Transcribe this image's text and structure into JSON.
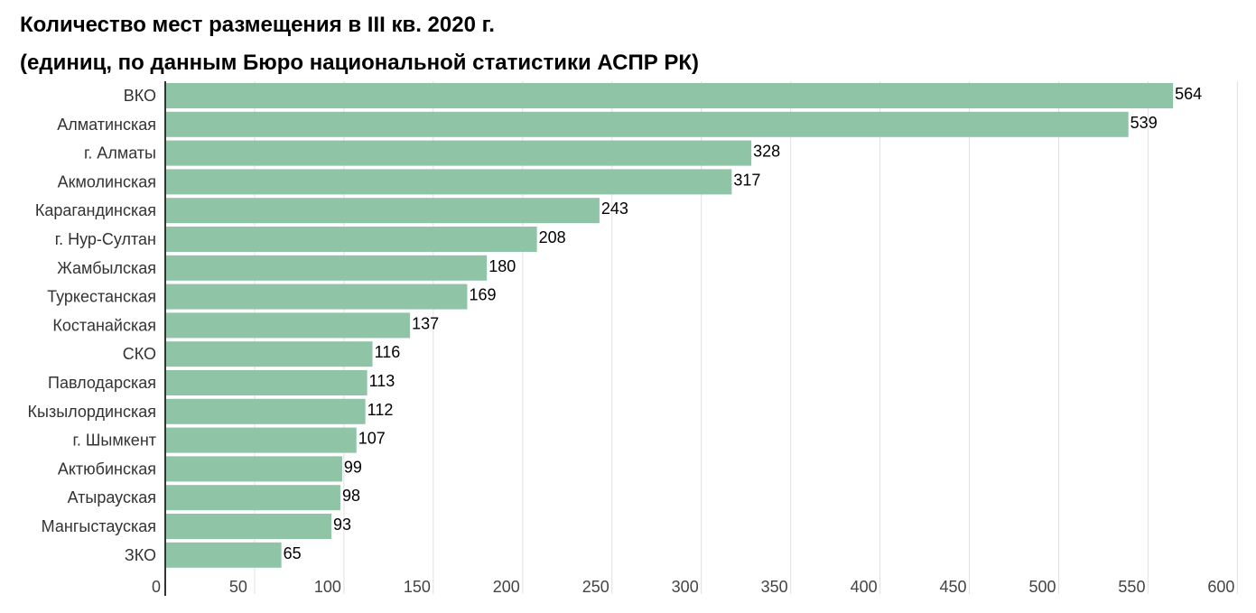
{
  "chart_data": {
    "type": "bar",
    "orientation": "horizontal",
    "title": "Количество мест размещения в III кв. 2020 г.",
    "subtitle": "(единиц, по данным Бюро национальной статистики АСПР РК)",
    "xlabel": "",
    "ylabel": "",
    "xlim": [
      0,
      600
    ],
    "x_ticks": [
      0,
      50,
      100,
      150,
      200,
      250,
      300,
      350,
      400,
      450,
      500,
      550,
      600
    ],
    "grid": "vertical",
    "bar_color": "#8fc4a6",
    "categories": [
      "ВКО",
      "Алматинская",
      "г. Алматы",
      "Акмолинская",
      "Карагандинская",
      "г. Нур-Султан",
      "Жамбылская",
      "Туркестанская",
      "Костанайская",
      "СКО",
      "Павлодарская",
      "Кызылординская",
      "г. Шымкент",
      "Актюбинская",
      "Атырауская",
      "Мангыстауская",
      "ЗКО"
    ],
    "values": [
      564,
      539,
      328,
      317,
      243,
      208,
      180,
      169,
      137,
      116,
      113,
      112,
      107,
      99,
      98,
      93,
      65
    ]
  }
}
